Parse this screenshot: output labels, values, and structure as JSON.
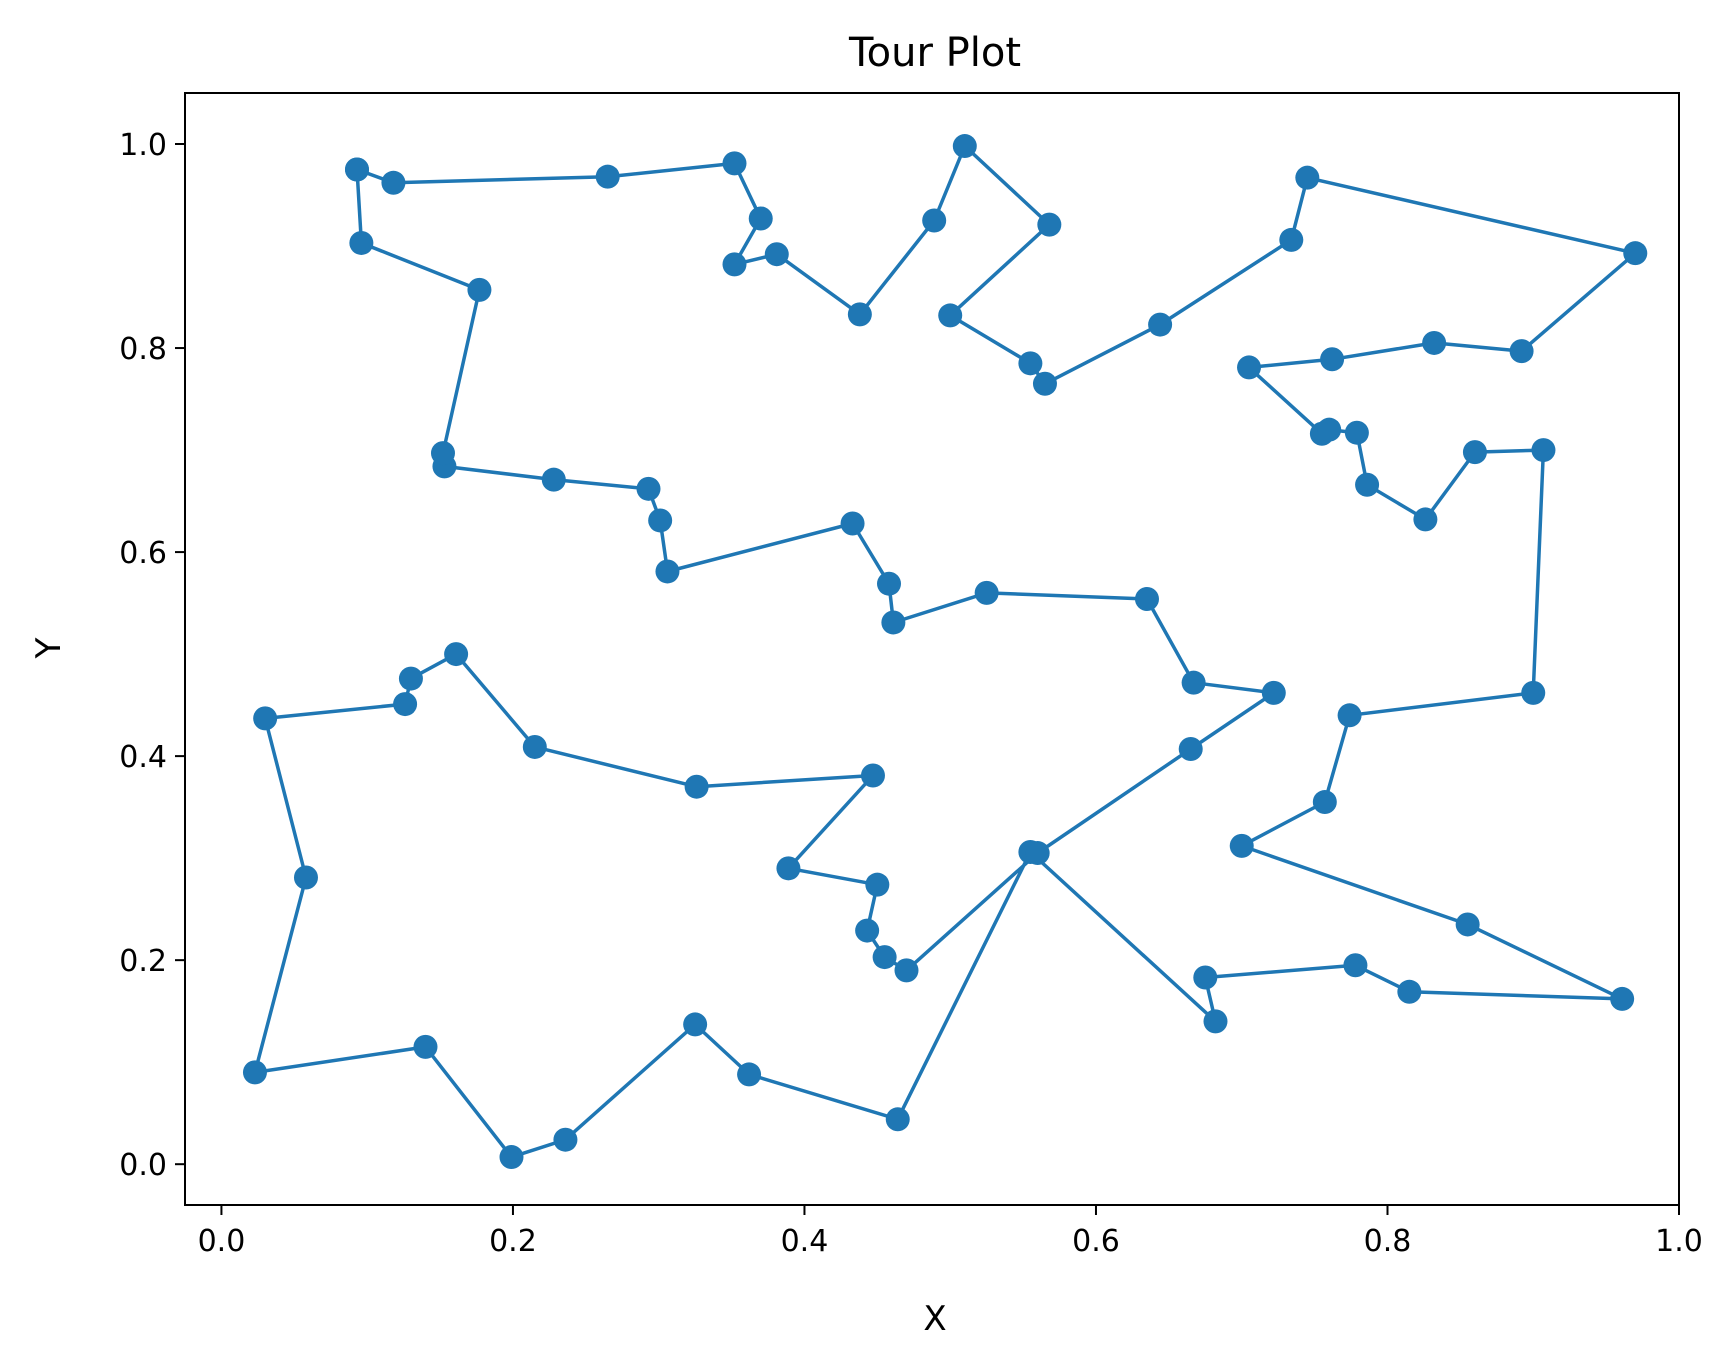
{
  "chart_data": {
    "type": "line",
    "title": "Tour Plot",
    "xlabel": "X",
    "ylabel": "Y",
    "xlim": [
      -0.025,
      1.0
    ],
    "ylim": [
      -0.04,
      1.05
    ],
    "xticks": [
      "0.0",
      "0.2",
      "0.4",
      "0.6",
      "0.8",
      "1.0"
    ],
    "yticks": [
      "0.0",
      "0.2",
      "0.4",
      "0.6",
      "0.8",
      "1.0"
    ],
    "grid": false,
    "legend": "none",
    "markers": true,
    "line_color": "#1f77b4",
    "series": [
      {
        "x": [
          0.093,
          0.118,
          0.265,
          0.352,
          0.37,
          0.352,
          0.381,
          0.438,
          0.489,
          0.51,
          0.568,
          0.5,
          0.555,
          0.565,
          0.644,
          0.734,
          0.745,
          0.97,
          0.892,
          0.832,
          0.762,
          0.705,
          0.755,
          0.76,
          0.779,
          0.786,
          0.826,
          0.86,
          0.907,
          0.9,
          0.774,
          0.757,
          0.7,
          0.855,
          0.961,
          0.815,
          0.778,
          0.675,
          0.682,
          0.555,
          0.464,
          0.362,
          0.325,
          0.236,
          0.199,
          0.14,
          0.023,
          0.058,
          0.03,
          0.126,
          0.13,
          0.161,
          0.215,
          0.326,
          0.447,
          0.389,
          0.45,
          0.443,
          0.455,
          0.47,
          0.56,
          0.665,
          0.722,
          0.667,
          0.635,
          0.525,
          0.461,
          0.458,
          0.433,
          0.306,
          0.301,
          0.293,
          0.228,
          0.153,
          0.152,
          0.177,
          0.096,
          0.093
        ],
        "y": [
          0.975,
          0.962,
          0.968,
          0.981,
          0.927,
          0.882,
          0.892,
          0.833,
          0.925,
          0.998,
          0.921,
          0.832,
          0.785,
          0.765,
          0.823,
          0.906,
          0.967,
          0.893,
          0.797,
          0.805,
          0.789,
          0.781,
          0.716,
          0.72,
          0.717,
          0.666,
          0.632,
          0.698,
          0.7,
          0.462,
          0.44,
          0.355,
          0.312,
          0.235,
          0.162,
          0.169,
          0.195,
          0.183,
          0.14,
          0.306,
          0.044,
          0.088,
          0.137,
          0.024,
          0.007,
          0.115,
          0.09,
          0.281,
          0.437,
          0.451,
          0.476,
          0.5,
          0.409,
          0.37,
          0.381,
          0.29,
          0.274,
          0.229,
          0.203,
          0.19,
          0.305,
          0.407,
          0.462,
          0.472,
          0.554,
          0.56,
          0.531,
          0.569,
          0.628,
          0.581,
          0.631,
          0.662,
          0.671,
          0.684,
          0.697,
          0.857,
          0.903,
          0.975
        ]
      }
    ]
  }
}
